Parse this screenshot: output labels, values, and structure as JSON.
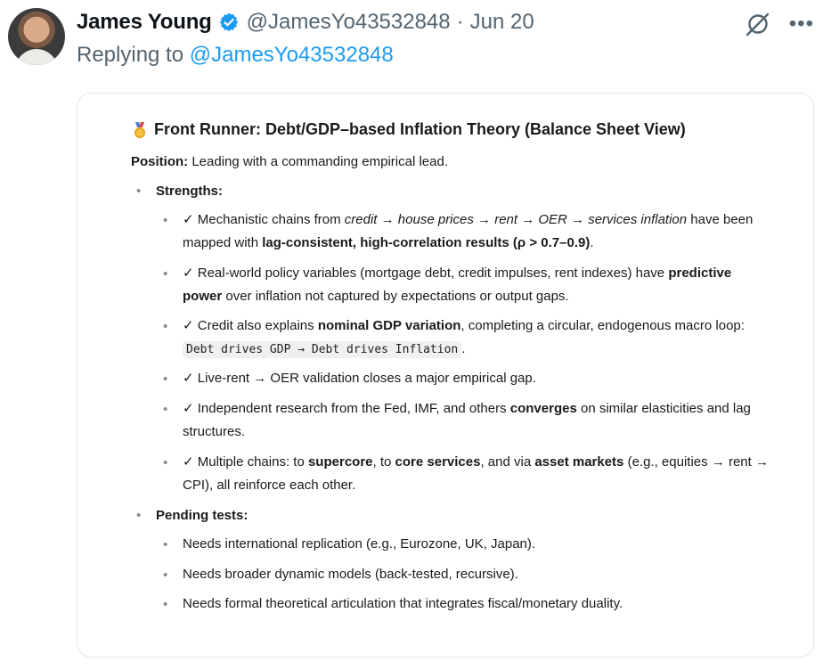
{
  "author": {
    "display_name": "James Young",
    "handle": "@JamesYo43532848",
    "separator": "·",
    "date": "Jun 20"
  },
  "reply": {
    "prefix": "Replying to",
    "mention": "@JamesYo43532848"
  },
  "icons": {
    "verified": "verified-badge-icon",
    "grok": "grok-icon",
    "more": "more-icon",
    "medal": "medal-icon"
  },
  "colors": {
    "accent": "#1d9bf0",
    "muted": "#536471"
  },
  "doc": {
    "title": "Front Runner: Debt/GDP–based Inflation Theory (Balance Sheet View)",
    "position_label": "Position:",
    "position_text": " Leading with a commanding empirical lead.",
    "strengths_label": "Strengths:",
    "strengths": {
      "s1": {
        "a": "✓ Mechanistic chains from ",
        "b": "credit → house prices → rent → OER → services inflation",
        "c": " have been",
        "d": "mapped with ",
        "e": "lag-consistent, high-correlation results (ρ > 0.7–0.9)",
        "f": "."
      },
      "s2": {
        "a": "✓ Real-world policy variables (mortgage debt, credit impulses, rent indexes) have ",
        "b": "predictive",
        "c": "power",
        "d": " over inflation not captured by expectations or output gaps."
      },
      "s3": {
        "a": "✓ Credit also explains ",
        "b": "nominal GDP variation",
        "c": ", completing a circular, endogenous macro loop:",
        "code": "Debt drives GDP → Debt drives Inflation",
        "d": "."
      },
      "s4": {
        "a": "✓ Live-rent → OER validation closes a major empirical gap."
      },
      "s5": {
        "a": "✓ Independent research from the Fed, IMF, and others ",
        "b": "converges",
        "c": " on similar elasticities and lag",
        "d": "structures."
      },
      "s6": {
        "a": "✓ Multiple chains: to ",
        "b": "supercore",
        "c": ", to ",
        "d": "core services",
        "e": ", and via ",
        "f": "asset markets",
        "g": " (e.g., equities → rent →",
        "h": "CPI), all reinforce each other."
      }
    },
    "pending_label": "Pending tests:",
    "pending": [
      "Needs international replication (e.g., Eurozone, UK, Japan).",
      "Needs broader dynamic models (back-tested, recursive).",
      "Needs formal theoretical articulation that integrates fiscal/monetary duality."
    ]
  }
}
